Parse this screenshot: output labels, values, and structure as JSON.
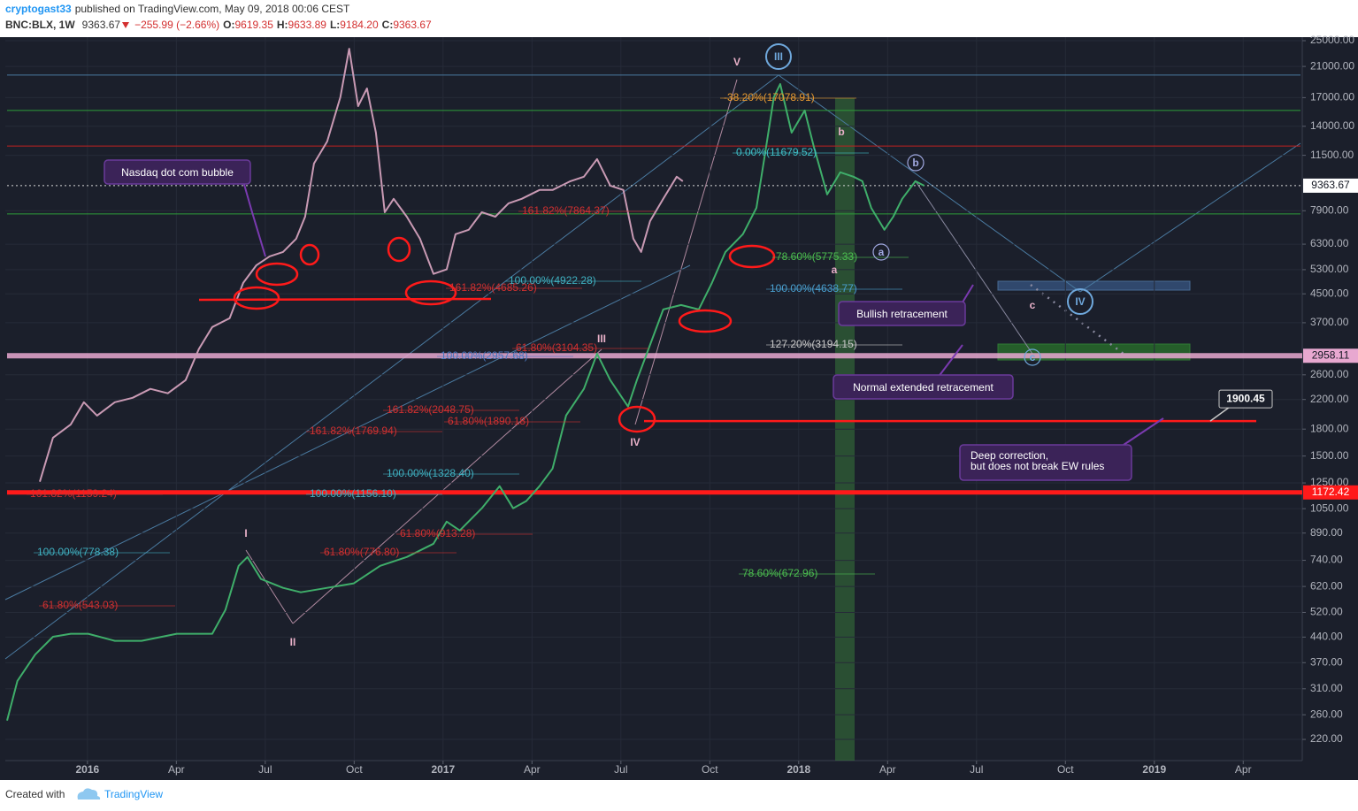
{
  "header": {
    "author": "cryptogast33",
    "published": "published on TradingView.com, May 09, 2018 00:06 CEST",
    "symbol": "BNC:BLX, 1W",
    "price": "9363.67",
    "change": "−255.99 (−2.66%)",
    "open_label": "O:",
    "open": "9619.35",
    "high_label": "H:",
    "high": "9633.89",
    "low_label": "L:",
    "low": "9184.20",
    "close_label": "C:",
    "close": "9363.67"
  },
  "footer": {
    "created_with": "Created with",
    "brand": "TradingView"
  },
  "chart_data": {
    "type": "line",
    "log_y": true,
    "grid": true,
    "xlim": [
      2015.769,
      2019.416
    ],
    "ylim": [
      190.6,
      25606
    ],
    "xticks": [
      2016,
      {
        "value": 2016.25,
        "label": "Apr"
      },
      {
        "value": 2016.5,
        "label": "Jul"
      },
      {
        "value": 2016.75,
        "label": "Oct"
      },
      2017,
      {
        "value": 2017.25,
        "label": "Apr"
      },
      {
        "value": 2017.5,
        "label": "Jul"
      },
      {
        "value": 2017.75,
        "label": "Oct"
      },
      2018,
      {
        "value": 2018.25,
        "label": "Apr"
      },
      {
        "value": 2018.5,
        "label": "Jul"
      },
      {
        "value": 2018.75,
        "label": "Oct"
      },
      2019,
      {
        "value": 2019.25,
        "label": "Apr"
      }
    ],
    "yticks": [
      {
        "value": 25000,
        "label": "25000.00"
      },
      {
        "value": 21000,
        "label": "21000.00"
      },
      {
        "value": 17000,
        "label": "17000.00"
      },
      {
        "value": 14000,
        "label": "14000.00"
      },
      {
        "value": 11500,
        "label": "11500.00"
      },
      {
        "value": 7900,
        "label": "7900.00"
      },
      {
        "value": 6300,
        "label": "6300.00"
      },
      {
        "value": 5300,
        "label": "5300.00"
      },
      {
        "value": 4500,
        "label": "4500.00"
      },
      {
        "value": 3700,
        "label": "3700.00"
      },
      {
        "value": 2600,
        "label": "2600.00"
      },
      {
        "value": 2200,
        "label": "2200.00"
      },
      {
        "value": 1800,
        "label": "1800.00"
      },
      {
        "value": 1500,
        "label": "1500.00"
      },
      {
        "value": 1250,
        "label": "1250.00"
      },
      {
        "value": 1050,
        "label": "1050.00"
      },
      {
        "value": 890,
        "label": "890.00"
      },
      {
        "value": 740,
        "label": "740.00"
      },
      {
        "value": 620,
        "label": "620.00"
      },
      {
        "value": 520,
        "label": "520.00"
      },
      {
        "value": 440,
        "label": "440.00"
      },
      {
        "value": 370,
        "label": "370.00"
      },
      {
        "value": 310,
        "label": "310.00"
      },
      {
        "value": 260,
        "label": "260.00"
      },
      {
        "value": 220,
        "label": "220.00"
      }
    ],
    "series": [
      {
        "color": "#c99ab4",
        "x": [
          2015.866,
          2015.903,
          2015.953,
          2015.99,
          2016.027,
          2016.077,
          2016.127,
          2016.177,
          2016.226,
          2016.276,
          2016.313,
          2016.351,
          2016.4,
          2016.438,
          2016.475,
          2016.512,
          2016.55,
          2016.587,
          2016.612,
          2016.637,
          2016.674,
          2016.711,
          2016.736,
          2016.761,
          2016.786,
          2016.811,
          2016.836,
          2016.861,
          2016.898,
          2016.935,
          2016.973,
          2017.01,
          2017.035,
          2017.072,
          2017.109,
          2017.147,
          2017.184,
          2017.221,
          2017.271,
          2017.308,
          2017.358,
          2017.396,
          2017.433,
          2017.47,
          2017.507,
          2017.535,
          2017.557,
          2017.582,
          2017.619,
          2017.657,
          2017.674
        ],
        "values": [
          1260,
          1698,
          1858,
          2159,
          1973,
          2159,
          2225,
          2364,
          2294,
          2509,
          3093,
          3594,
          3816,
          4844,
          5461,
          5800,
          5975,
          6537,
          7588,
          10875,
          12625,
          17040,
          23670,
          16050,
          18090,
          13410,
          7820,
          8563,
          7588,
          6537,
          5150,
          5310,
          6739,
          6944,
          7820,
          7588,
          8310,
          8563,
          9094,
          9094,
          9650,
          9950,
          11210,
          9363,
          9094,
          6537,
          5975,
          7365,
          8563,
          9950,
          9650
        ]
      },
      {
        "color": "#3fae6a",
        "x": [
          2015.774,
          2015.803,
          2015.853,
          2015.903,
          2015.953,
          2016.002,
          2016.077,
          2016.152,
          2016.251,
          2016.351,
          2016.388,
          2016.425,
          2016.45,
          2016.488,
          2016.55,
          2016.6,
          2016.674,
          2016.749,
          2016.823,
          2016.898,
          2016.973,
          2017.01,
          2017.047,
          2017.109,
          2017.159,
          2017.197,
          2017.234,
          2017.271,
          2017.308,
          2017.346,
          2017.396,
          2017.433,
          2017.47,
          2017.52,
          2017.545,
          2017.582,
          2017.619,
          2017.669,
          2017.719,
          2017.756,
          2017.794,
          2017.843,
          2017.881,
          2017.905,
          2017.93,
          2017.948,
          2017.98,
          2018.017,
          2018.042,
          2018.08,
          2018.117,
          2018.154,
          2018.179,
          2018.204,
          2018.241,
          2018.266,
          2018.291,
          2018.328,
          2018.353
        ],
        "values": [
          250,
          327,
          391,
          441,
          450,
          450,
          429,
          429,
          450,
          450,
          529,
          713,
          757,
          652,
          614,
          596,
          614,
          633,
          713,
          757,
          828,
          962,
          906,
          1053,
          1223,
          1053,
          1106,
          1223,
          1378,
          1975,
          2364,
          3000,
          2509,
          2097,
          2509,
          3186,
          4049,
          4172,
          4049,
          4844,
          5975,
          6739,
          8055,
          11548,
          17040,
          18640,
          13410,
          15580,
          12250,
          8824,
          10250,
          9950,
          9650,
          8055,
          6944,
          7588,
          8563,
          9650,
          9360
        ]
      }
    ],
    "levels": [
      {
        "value": 9363.67,
        "color": "#d8d8d8"
      },
      {
        "value": 2958.11,
        "color": "#e8a8d0"
      },
      {
        "value": 1172.42,
        "color": "#ff1a1a"
      },
      {
        "value": 1900.45,
        "color": "#ff1a1a"
      }
    ],
    "guide_lines": [
      {
        "value": 19800,
        "color": "#4a7aa0"
      },
      {
        "value": 15580,
        "color": "#2e9e3a"
      },
      {
        "value": 12250,
        "color": "#c02020"
      },
      {
        "value": 7730,
        "color": "#2e9e3a"
      },
      {
        "value": 4350,
        "color": "#ff1a1a"
      }
    ],
    "fib_labels": [
      {
        "text": "-38.20%(17078.91)",
        "color": "#e89a30"
      },
      {
        "text": "0.00%(11679.52)",
        "color": "#3fc0c8"
      },
      {
        "text": "78.60%(5775.33)",
        "color": "#4cbf50"
      },
      {
        "text": "100.00%(4638.77)",
        "color": "#4aa0d0"
      },
      {
        "text": "127.20%(3194.15)",
        "color": "#c8c8c8"
      },
      {
        "text": "100.00%(4922.28)",
        "color": "#3fb0c0"
      },
      {
        "text": "161.82%(4685.26)",
        "color": "#d03030"
      },
      {
        "text": "161.82%(7864.37)",
        "color": "#d03030"
      },
      {
        "text": "61.80%(3104.35)",
        "color": "#d03030"
      },
      {
        "text": "100.00%(2957.68)",
        "color": "#4a78c0"
      },
      {
        "text": "161.82%(2048.75)",
        "color": "#d03030"
      },
      {
        "text": "61.80%(1890.18)",
        "color": "#d03030"
      },
      {
        "text": "161.82%(1769.94)",
        "color": "#d03030"
      },
      {
        "text": "100.00%(1328.40)",
        "color": "#3fb0c0"
      },
      {
        "text": "100.00%(1156.10)",
        "color": "#3fb0c0"
      },
      {
        "text": "161.82%(1159.24)",
        "color": "#d03030"
      },
      {
        "text": "61.80%(913.28)",
        "color": "#d03030"
      },
      {
        "text": "61.80%(776.80)",
        "color": "#d03030"
      },
      {
        "text": "100.00%(778.38)",
        "color": "#3fb0c0"
      },
      {
        "text": "61.80%(543.03)",
        "color": "#d03030"
      },
      {
        "text": "78.60%(672.96)",
        "color": "#4cbf50"
      }
    ],
    "wave_labels": [
      {
        "text": "V",
        "color": "#e8b0c8"
      },
      {
        "text": "III",
        "color": "#6fa8dc"
      },
      {
        "text": "b",
        "color": "#e8b0c8"
      },
      {
        "text": "a",
        "color": "#e8b0c8"
      },
      {
        "text": "b",
        "color": "#a0a8e0"
      },
      {
        "text": "a",
        "color": "#a0a8e0"
      },
      {
        "text": "c",
        "color": "#e8b0c8"
      },
      {
        "text": "IV",
        "color": "#6fa8dc"
      },
      {
        "text": "c",
        "color": "#6fa8dc"
      },
      {
        "text": "III",
        "color": "#e8b0c8"
      },
      {
        "text": "IV",
        "color": "#e8b0c8"
      },
      {
        "text": "I",
        "color": "#e8b0c8"
      },
      {
        "text": "II",
        "color": "#e8b0c8"
      }
    ],
    "callouts": [
      {
        "lines": [
          "Nasdaq dot com bubble"
        ]
      },
      {
        "lines": [
          "Bullish retracement"
        ]
      },
      {
        "lines": [
          "Normal extended retracement"
        ]
      },
      {
        "lines": [
          "Deep correction,",
          "but does not break EW rules"
        ]
      }
    ]
  }
}
